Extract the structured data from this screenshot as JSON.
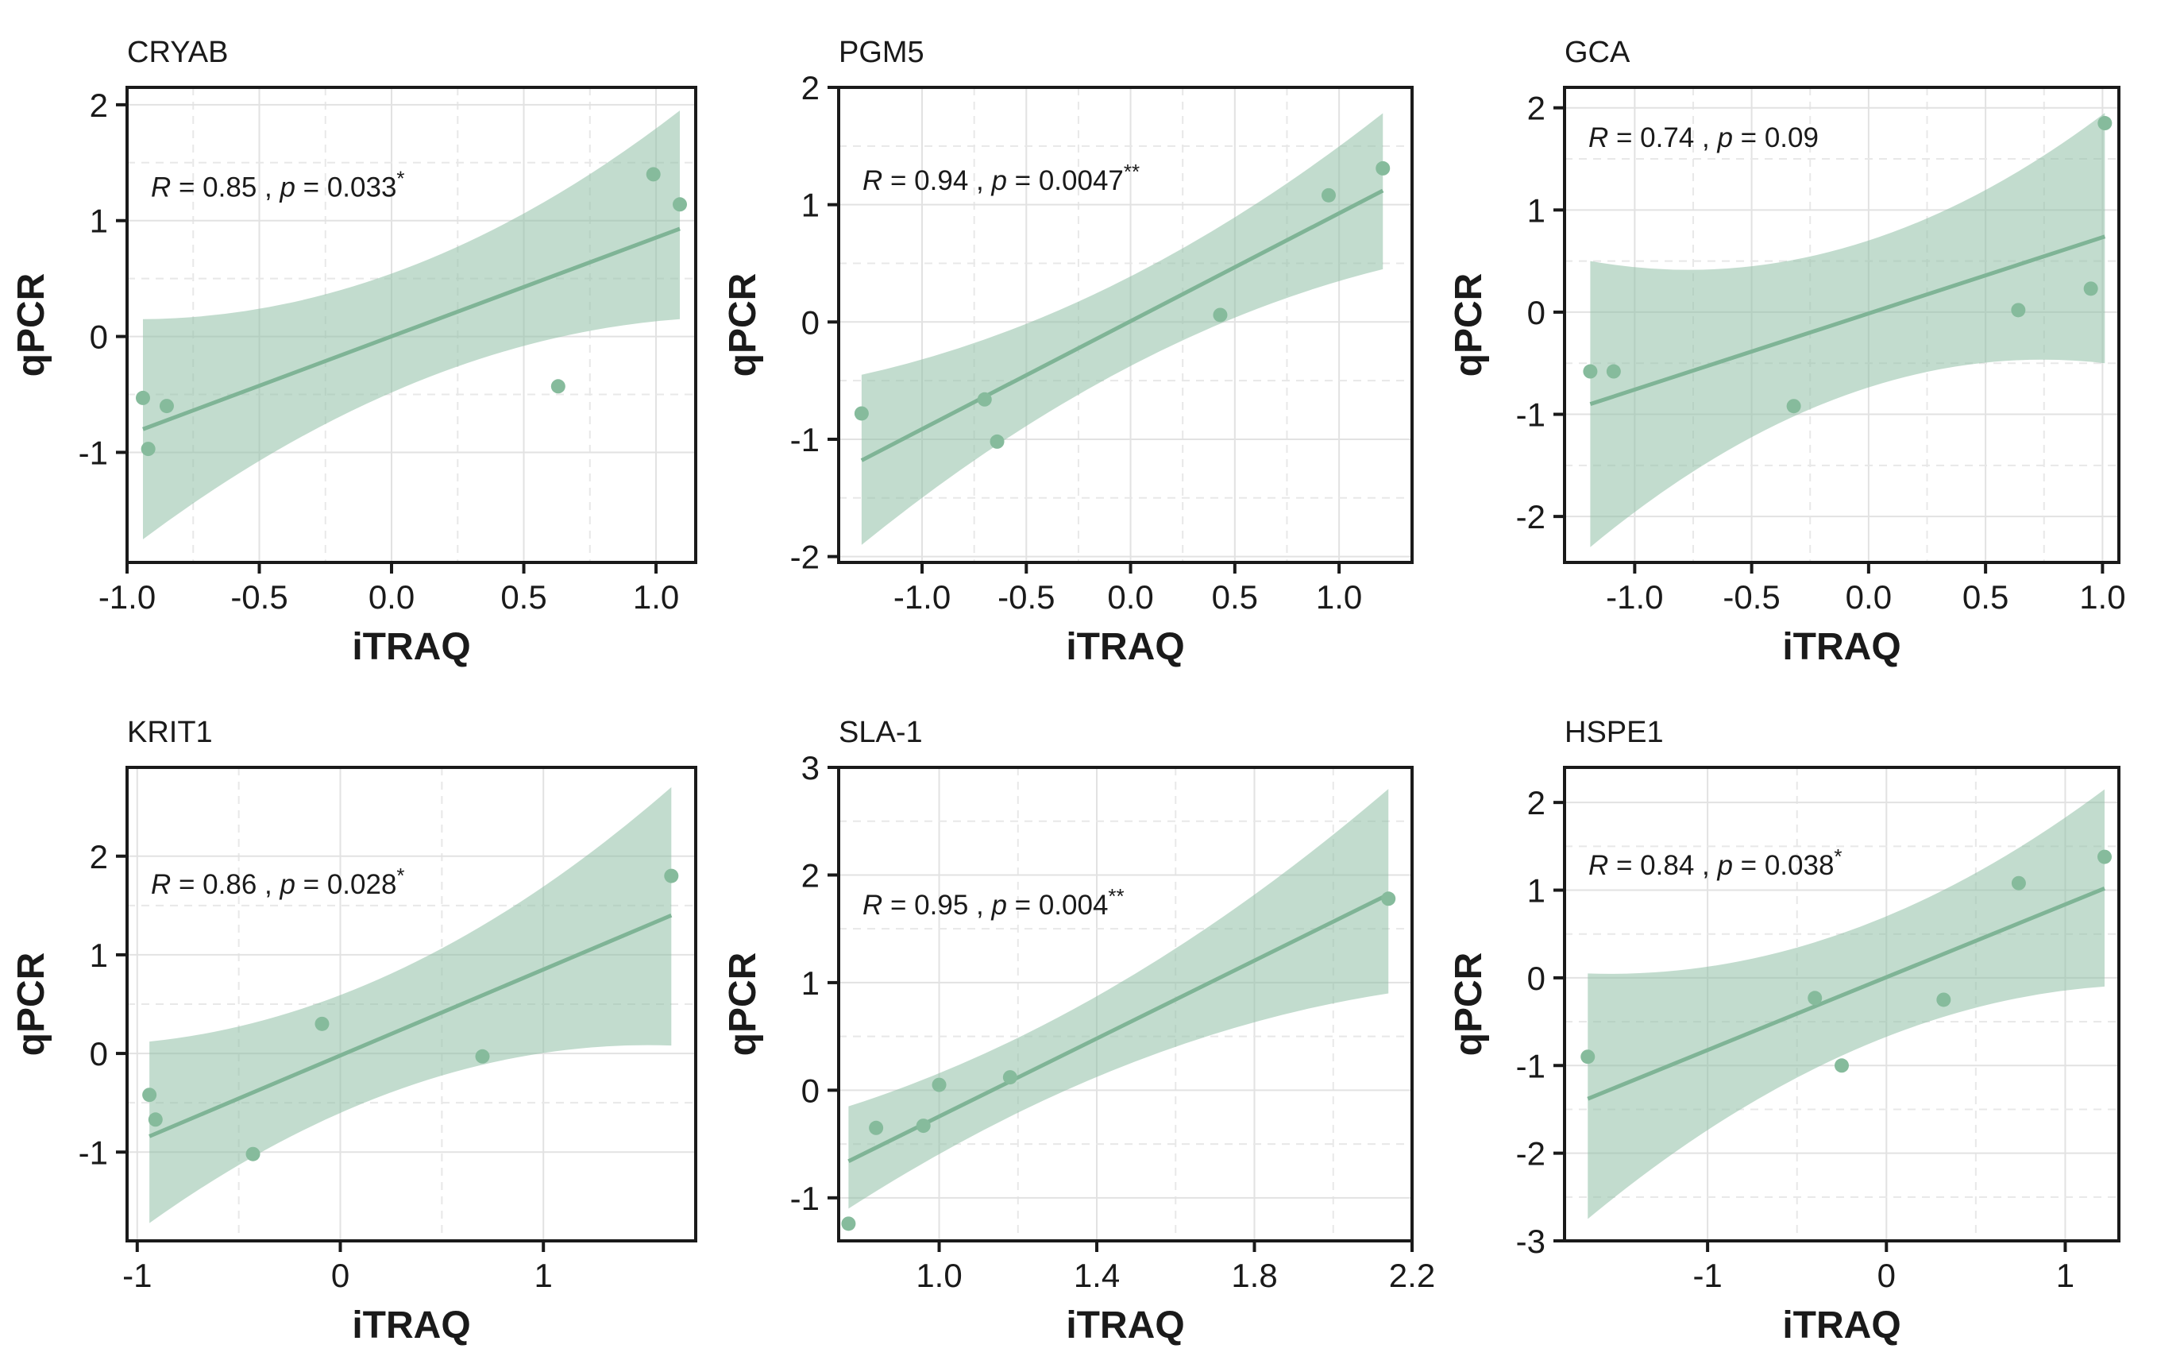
{
  "chart_data": [
    {
      "type": "scatter",
      "title": "CRYAB",
      "xlabel": "iTRAQ",
      "ylabel": "qPCR",
      "annotation": {
        "r_label": "R",
        "r": "0.85",
        "p_label": "p",
        "p": "0.033",
        "stars": "*"
      },
      "xlim": [
        -1.0,
        1.15
      ],
      "ylim": [
        -1.95,
        2.15
      ],
      "xticks": [
        -1.0,
        -0.5,
        0.0,
        0.5,
        1.0
      ],
      "xtick_labels": [
        "-1.0",
        "-0.5",
        "0.0",
        "0.5",
        "1.0"
      ],
      "yticks": [
        -1,
        0,
        1,
        2
      ],
      "ytick_labels": [
        "-1",
        "0",
        "1",
        "2"
      ],
      "x": [
        -0.94,
        -0.92,
        -0.85,
        0.63,
        0.99,
        1.09
      ],
      "y": [
        -0.53,
        -0.97,
        -0.6,
        -0.43,
        1.4,
        1.14
      ],
      "fit": {
        "x": [
          -0.94,
          1.09
        ],
        "y": [
          -0.8,
          0.93
        ]
      },
      "band": {
        "x": [
          -0.94,
          1.09
        ],
        "upper_y": [
          0.15,
          1.95
        ],
        "lower_y": [
          -1.75,
          0.15
        ]
      },
      "color": "#8fbfa5",
      "grid": true
    },
    {
      "type": "scatter",
      "title": "PGM5",
      "xlabel": "iTRAQ",
      "ylabel": "qPCR",
      "annotation": {
        "r_label": "R",
        "r": "0.94",
        "p_label": "p",
        "p": "0.0047",
        "stars": "**"
      },
      "xlim": [
        -1.4,
        1.35
      ],
      "ylim": [
        -2.05,
        2.0
      ],
      "xticks": [
        -1.0,
        -0.5,
        0.0,
        0.5,
        1.0
      ],
      "xtick_labels": [
        "-1.0",
        "-0.5",
        "0.0",
        "0.5",
        "1.0"
      ],
      "yticks": [
        -2,
        -1,
        0,
        1,
        2
      ],
      "ytick_labels": [
        "-2",
        "-1",
        "0",
        "1",
        "2"
      ],
      "x": [
        -1.29,
        -0.7,
        -0.64,
        0.43,
        0.95,
        1.21
      ],
      "y": [
        -0.78,
        -0.66,
        -1.02,
        0.06,
        1.08,
        1.31
      ],
      "fit": {
        "x": [
          -1.29,
          1.21
        ],
        "y": [
          -1.18,
          1.12
        ]
      },
      "band": {
        "x": [
          -1.29,
          1.21
        ],
        "upper_y": [
          -0.45,
          1.78
        ],
        "lower_y": [
          -1.9,
          0.45
        ]
      },
      "color": "#8fbfa5",
      "grid": true
    },
    {
      "type": "scatter",
      "title": "GCA",
      "xlabel": "iTRAQ",
      "ylabel": "qPCR",
      "annotation": {
        "r_label": "R",
        "r": "0.74",
        "p_label": "p",
        "p": "0.09",
        "stars": ""
      },
      "xlim": [
        -1.3,
        1.07
      ],
      "ylim": [
        -2.45,
        2.2
      ],
      "xticks": [
        -1.0,
        -0.5,
        0.0,
        0.5,
        1.0
      ],
      "xtick_labels": [
        "-1.0",
        "-0.5",
        "0.0",
        "0.5",
        "1.0"
      ],
      "yticks": [
        -2,
        -1,
        0,
        1,
        2
      ],
      "ytick_labels": [
        "-2",
        "-1",
        "0",
        "1",
        "2"
      ],
      "x": [
        -1.19,
        -1.09,
        -0.32,
        0.64,
        0.95,
        1.01
      ],
      "y": [
        -0.58,
        -0.58,
        -0.92,
        0.02,
        0.23,
        1.85
      ],
      "fit": {
        "x": [
          -1.19,
          1.01
        ],
        "y": [
          -0.9,
          0.74
        ]
      },
      "band": {
        "x": [
          -1.19,
          1.01
        ],
        "upper_y": [
          0.5,
          1.95
        ],
        "lower_y": [
          -2.3,
          -0.5
        ]
      },
      "color": "#8fbfa5",
      "grid": true
    },
    {
      "type": "scatter",
      "title": "KRIT1",
      "xlabel": "iTRAQ",
      "ylabel": "qPCR",
      "annotation": {
        "r_label": "R",
        "r": "0.86",
        "p_label": "p",
        "p": "0.028",
        "stars": "*"
      },
      "xlim": [
        -1.05,
        1.75
      ],
      "ylim": [
        -1.9,
        2.9
      ],
      "xticks": [
        -1,
        0,
        1
      ],
      "xtick_labels": [
        "-1",
        "0",
        "1"
      ],
      "yticks": [
        -1,
        0,
        1,
        2
      ],
      "ytick_labels": [
        "-1",
        "0",
        "1",
        "2"
      ],
      "x": [
        -0.94,
        -0.91,
        -0.43,
        -0.09,
        0.7,
        1.63
      ],
      "y": [
        -0.42,
        -0.67,
        -1.02,
        0.3,
        -0.03,
        1.8
      ],
      "fit": {
        "x": [
          -0.94,
          1.63
        ],
        "y": [
          -0.84,
          1.4
        ]
      },
      "band": {
        "x": [
          -0.94,
          1.63
        ],
        "upper_y": [
          0.12,
          2.7
        ],
        "lower_y": [
          -1.72,
          0.08
        ]
      },
      "color": "#8fbfa5",
      "grid": true
    },
    {
      "type": "scatter",
      "title": "SLA-1",
      "xlabel": "iTRAQ",
      "ylabel": "qPCR",
      "annotation": {
        "r_label": "R",
        "r": "0.95",
        "p_label": "p",
        "p": "0.004",
        "stars": "**"
      },
      "xlim": [
        0.745,
        2.2
      ],
      "ylim": [
        -1.4,
        3.0
      ],
      "xticks": [
        1.0,
        1.4,
        1.8,
        2.2
      ],
      "xtick_labels": [
        "1.0",
        "1.4",
        "1.8",
        "2.2"
      ],
      "yticks": [
        -1,
        0,
        1,
        2,
        3
      ],
      "ytick_labels": [
        "-1",
        "0",
        "1",
        "2",
        "3"
      ],
      "x": [
        0.77,
        0.84,
        0.96,
        1.0,
        1.18,
        2.14
      ],
      "y": [
        -1.24,
        -0.35,
        -0.33,
        0.05,
        0.12,
        1.78
      ],
      "fit": {
        "x": [
          0.77,
          2.14
        ],
        "y": [
          -0.66,
          1.82
        ]
      },
      "band": {
        "x": [
          0.77,
          2.14
        ],
        "upper_y": [
          -0.15,
          2.8
        ],
        "lower_y": [
          -1.1,
          0.9
        ]
      },
      "color": "#8fbfa5",
      "grid": true
    },
    {
      "type": "scatter",
      "title": "HSPE1",
      "xlabel": "iTRAQ",
      "ylabel": "qPCR",
      "annotation": {
        "r_label": "R",
        "r": "0.84",
        "p_label": "p",
        "p": "0.038",
        "stars": "*"
      },
      "xlim": [
        -1.8,
        1.3
      ],
      "ylim": [
        -3.0,
        2.4
      ],
      "xticks": [
        -1,
        0,
        1
      ],
      "xtick_labels": [
        "-1",
        "0",
        "1"
      ],
      "yticks": [
        -3,
        -2,
        -1,
        0,
        1,
        2
      ],
      "ytick_labels": [
        "-3",
        "-2",
        "-1",
        "0",
        "1",
        "2"
      ],
      "x": [
        -1.67,
        -0.4,
        -0.25,
        0.32,
        0.74,
        1.22
      ],
      "y": [
        -0.9,
        -0.23,
        -1.0,
        -0.25,
        1.08,
        1.38
      ],
      "fit": {
        "x": [
          -1.67,
          1.22
        ],
        "y": [
          -1.38,
          1.02
        ]
      },
      "band": {
        "x": [
          -1.67,
          1.22
        ],
        "upper_y": [
          0.05,
          2.15
        ],
        "lower_y": [
          -2.75,
          -0.1
        ]
      },
      "color": "#8fbfa5",
      "grid": true
    }
  ]
}
